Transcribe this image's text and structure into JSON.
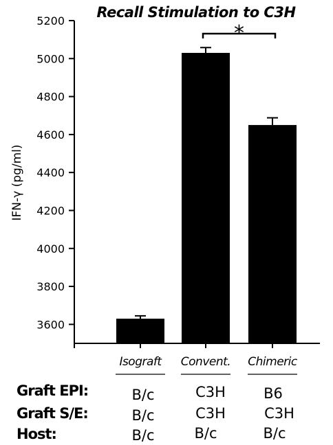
{
  "chart_data": {
    "type": "bar",
    "title": "Recall Stimulation to C3H",
    "ylabel": "IFN-γ (pg/ml)",
    "xlabel": "",
    "ylim": [
      3500,
      5200
    ],
    "yticks": [
      "3600",
      "3800",
      "4000",
      "4200",
      "4400",
      "4600",
      "4800",
      "5000",
      "5200"
    ],
    "categories": [
      "Isograft",
      "Convent.",
      "Chimeric"
    ],
    "values": [
      3630,
      5030,
      4650
    ],
    "errors": [
      15,
      28,
      38
    ],
    "bar_color": "#000000",
    "significance": {
      "between": [
        "Convent.",
        "Chimeric"
      ],
      "label": "*"
    }
  },
  "table": {
    "rows": [
      {
        "label": "Graft EPI:",
        "values": [
          "B/c",
          "C3H",
          "B6"
        ]
      },
      {
        "label": "Graft S/E:",
        "values": [
          "B/c",
          "C3H",
          "C3H"
        ]
      },
      {
        "label": "Host:",
        "values": [
          "B/c",
          "B/c",
          "B/c"
        ]
      }
    ]
  }
}
